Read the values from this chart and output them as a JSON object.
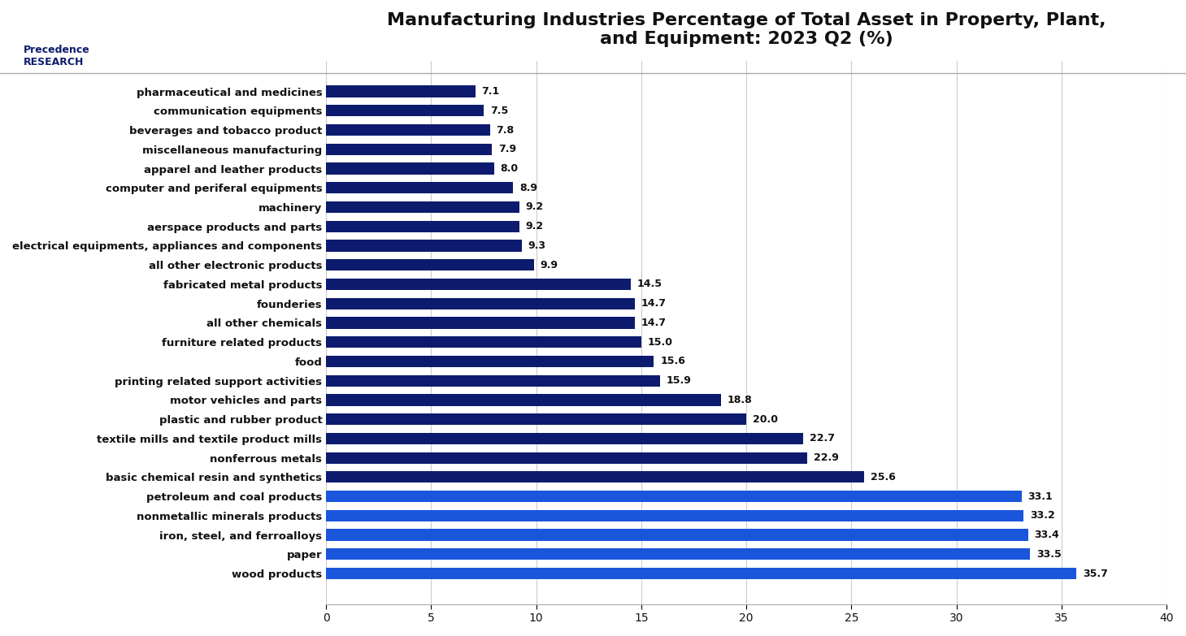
{
  "title": "Manufacturing Industries Percentage of Total Asset in Property, Plant,\nand Equipment: 2023 Q2 (%)",
  "categories": [
    "wood products",
    "paper",
    "iron, steel, and ferroalloys",
    "nonmetallic minerals products",
    "petroleum and coal products",
    "basic chemical resin and synthetics",
    "nonferrous metals",
    "textile mills and textile product mills",
    "plastic and rubber product",
    "motor vehicles and parts",
    "printing related support activities",
    "food",
    "furniture related products",
    "all other chemicals",
    "founderies",
    "fabricated metal products",
    "all other electronic products",
    "electrical equipments, appliances and components",
    "aerspace products and parts",
    "machinery",
    "computer and periferal equipments",
    "apparel and leather products",
    "miscellaneous manufacturing",
    "beverages and tobacco product",
    "communication equipments",
    "pharmaceutical and medicines"
  ],
  "values": [
    35.7,
    33.5,
    33.4,
    33.2,
    33.1,
    25.6,
    22.9,
    22.7,
    20.0,
    18.8,
    15.9,
    15.6,
    15.0,
    14.7,
    14.7,
    14.5,
    9.9,
    9.3,
    9.2,
    9.2,
    8.9,
    8.0,
    7.9,
    7.8,
    7.5,
    7.1
  ],
  "bar_color_dark": "#0d1b6e",
  "bar_color_light": "#1a56db",
  "xlim": [
    0,
    40
  ],
  "xticks": [
    0,
    5,
    10,
    15,
    20,
    25,
    30,
    35,
    40
  ],
  "background_color": "#ffffff",
  "grid_color": "#cccccc",
  "title_fontsize": 16,
  "label_fontsize": 9.5,
  "value_fontsize": 9,
  "bar_height": 0.6
}
